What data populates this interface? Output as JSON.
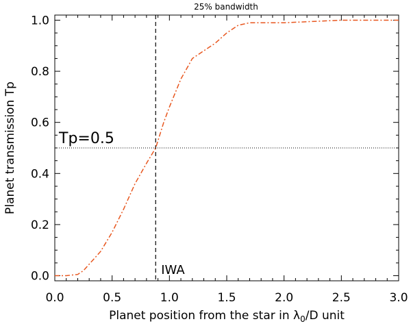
{
  "chart_data": {
    "type": "line",
    "title": "25% bandwidth",
    "xlabel_prefix": "Planet position from the star in ",
    "xlabel_lambda": "λ",
    "xlabel_sub": "0",
    "xlabel_suffix": "/D unit",
    "ylabel": "Planet transmission Tp",
    "xlim": [
      0.0,
      3.0
    ],
    "ylim": [
      -0.02,
      1.02
    ],
    "xticks": [
      {
        "value": 0.0,
        "label": "0.0"
      },
      {
        "value": 0.5,
        "label": "0.5"
      },
      {
        "value": 1.0,
        "label": "1.0"
      },
      {
        "value": 1.5,
        "label": "1.5"
      },
      {
        "value": 2.0,
        "label": "2.0"
      },
      {
        "value": 2.5,
        "label": "2.5"
      },
      {
        "value": 3.0,
        "label": "3.0"
      }
    ],
    "yticks": [
      {
        "value": 0.0,
        "label": "0.0"
      },
      {
        "value": 0.2,
        "label": "0.2"
      },
      {
        "value": 0.4,
        "label": "0.4"
      },
      {
        "value": 0.6,
        "label": "0.6"
      },
      {
        "value": 0.8,
        "label": "0.8"
      },
      {
        "value": 1.0,
        "label": "1.0"
      }
    ],
    "grid": false,
    "series": [
      {
        "color": "#e8561e",
        "style": "dash-dot",
        "x": [
          0.0,
          0.1,
          0.2,
          0.25,
          0.3,
          0.35,
          0.4,
          0.5,
          0.6,
          0.7,
          0.8,
          0.88,
          0.95,
          1.0,
          1.1,
          1.2,
          1.3,
          1.4,
          1.5,
          1.6,
          1.7,
          1.8,
          2.0,
          2.5,
          3.0
        ],
        "y": [
          0.0,
          0.0,
          0.005,
          0.02,
          0.045,
          0.07,
          0.095,
          0.17,
          0.26,
          0.36,
          0.44,
          0.5,
          0.6,
          0.66,
          0.77,
          0.85,
          0.88,
          0.91,
          0.95,
          0.98,
          0.99,
          0.99,
          0.99,
          1.0,
          1.0
        ]
      }
    ],
    "hline": {
      "y": 0.5,
      "label": "Tp=0.5",
      "style": "dotted",
      "color": "#000000"
    },
    "vline": {
      "x": 0.88,
      "label": "IWA",
      "style": "dashed",
      "color": "#000000"
    }
  }
}
